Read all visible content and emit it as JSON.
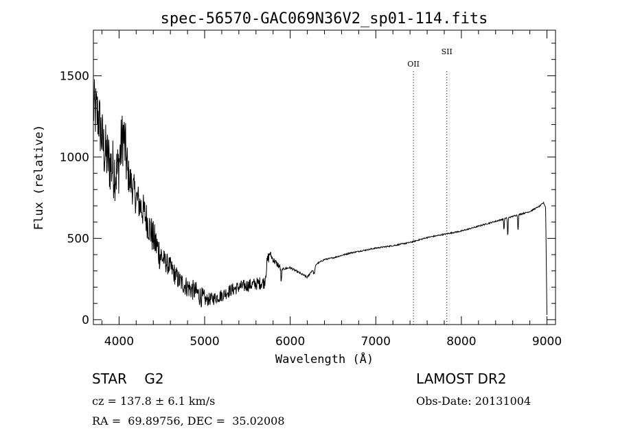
{
  "chart_data": {
    "type": "line",
    "title": "spec-56570-GAC069N36V2_sp01-114.fits",
    "xlabel": "Wavelength (Å)",
    "ylabel": "Flux (relative)",
    "xlim": [
      3700,
      9100
    ],
    "ylim": [
      -30,
      1780
    ],
    "xticks": [
      4000,
      5000,
      6000,
      7000,
      8000,
      9000
    ],
    "yticks": [
      0,
      500,
      1000,
      1500
    ],
    "xtick_labels": [
      "4000",
      "5000",
      "6000",
      "7000",
      "8000",
      "9000"
    ],
    "ytick_labels": [
      "0",
      "500",
      "1000",
      "1500"
    ],
    "grid": false,
    "series": [
      {
        "anchors_x": [
          3700,
          3760,
          3820,
          3900,
          3980,
          4050,
          4100,
          4200,
          4300,
          4400,
          4500,
          4600,
          4700,
          4800,
          4900,
          5000,
          5100,
          5200,
          5300,
          5400,
          5500,
          5600,
          5700,
          5730,
          5760,
          5800,
          5850,
          5900,
          6000,
          6100,
          6200,
          6300,
          6400,
          6500,
          6600,
          6700,
          6800,
          6900,
          7000,
          7200,
          7400,
          7600,
          7800,
          8000,
          8200,
          8400,
          8600,
          8800,
          8920,
          8960,
          8985,
          9000
        ],
        "anchors_y": [
          1300,
          1250,
          1050,
          950,
          900,
          1150,
          900,
          750,
          650,
          500,
          380,
          320,
          240,
          200,
          170,
          120,
          130,
          150,
          180,
          200,
          210,
          220,
          230,
          350,
          410,
          370,
          340,
          310,
          320,
          290,
          260,
          340,
          370,
          380,
          395,
          410,
          420,
          430,
          440,
          455,
          475,
          505,
          525,
          545,
          575,
          605,
          635,
          665,
          700,
          720,
          690,
          30
        ]
      }
    ],
    "absorption_lines": [
      {
        "x": 5895,
        "depth": 90,
        "width": 6
      },
      {
        "x": 6280,
        "depth": 40,
        "width": 14
      },
      {
        "x": 8542,
        "depth": 120,
        "width": 5
      },
      {
        "x": 8662,
        "depth": 100,
        "width": 5
      },
      {
        "x": 8498,
        "depth": 70,
        "width": 5
      }
    ],
    "emission_markers": [
      {
        "label": "OII",
        "x": 7440
      },
      {
        "label": "SII",
        "x": 7830
      }
    ]
  },
  "footer": {
    "class_line": "STAR    G2",
    "survey": "LAMOST DR2",
    "cz": "cz = 137.8 ± 6.1 km/s",
    "obs_date": "Obs-Date: 20131004",
    "coords": "RA =  69.89756, DEC =  35.02008"
  }
}
